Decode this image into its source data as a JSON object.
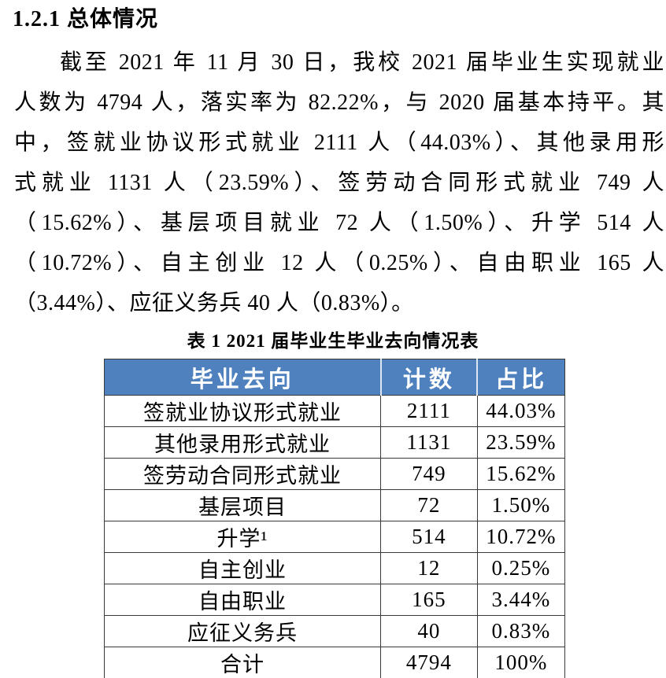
{
  "heading": "1.2.1 总体情况",
  "paragraph": {
    "lines": [
      "截至 2021 年 11 月 30 日，我校 2021 届毕业生实现就业",
      "人数为 4794 人，落实率为 82.22%，与 2020 届基本持平。其",
      "中，签就业协议形式就业 2111 人（44.03%）、其他录用形",
      "式就业 1131 人（23.59%）、签劳动合同形式就业 749 人",
      "（15.62%）、基层项目就业 72 人（1.50%）、升学 514 人",
      "（10.72%）、自主创业 12 人（0.25%）、自由职业 165 人",
      "（3.44%）、应征义务兵 40 人（0.83%）。"
    ]
  },
  "table": {
    "caption": "表 1 2021 届毕业生毕业去向情况表",
    "header_bg": "#4E81BD",
    "header_text_color": "#FFFFFF",
    "columns": [
      "毕业去向",
      "计数",
      "占比"
    ],
    "rows": [
      {
        "destination": "签就业协议形式就业",
        "count": "2111",
        "percent": "44.03%"
      },
      {
        "destination": "其他录用形式就业",
        "count": "1131",
        "percent": "23.59%"
      },
      {
        "destination": "签劳动合同形式就业",
        "count": "749",
        "percent": "15.62%"
      },
      {
        "destination": "基层项目",
        "count": "72",
        "percent": "1.50%"
      },
      {
        "destination": "升学¹",
        "count": "514",
        "percent": "10.72%"
      },
      {
        "destination": "自主创业",
        "count": "12",
        "percent": "0.25%"
      },
      {
        "destination": "自由职业",
        "count": "165",
        "percent": "3.44%"
      },
      {
        "destination": "应征义务兵",
        "count": "40",
        "percent": "0.83%"
      },
      {
        "destination": "合计",
        "count": "4794",
        "percent": "100%"
      }
    ]
  }
}
